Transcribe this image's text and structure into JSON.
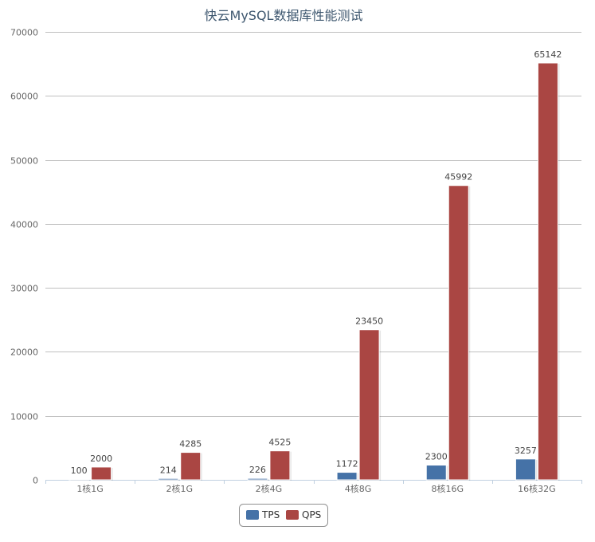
{
  "chart_data": {
    "type": "bar",
    "title": "快云MySQL数据库性能测试",
    "categories": [
      "1核1G",
      "2核1G",
      "2核4G",
      "4核8G",
      "8核16G",
      "16核32G"
    ],
    "series": [
      {
        "name": "TPS",
        "color": "#4572a7",
        "values": [
          100,
          214,
          226,
          1172,
          2300,
          3257
        ]
      },
      {
        "name": "QPS",
        "color": "#aa4643",
        "values": [
          2000,
          4285,
          4525,
          23450,
          45992,
          65142
        ]
      }
    ],
    "ylim": [
      0,
      70000
    ],
    "yticks": [
      0,
      10000,
      20000,
      30000,
      40000,
      50000,
      60000,
      70000
    ],
    "xlabel": "",
    "ylabel": "",
    "grid": true,
    "legend": "bottom-center",
    "data_labels": true
  }
}
